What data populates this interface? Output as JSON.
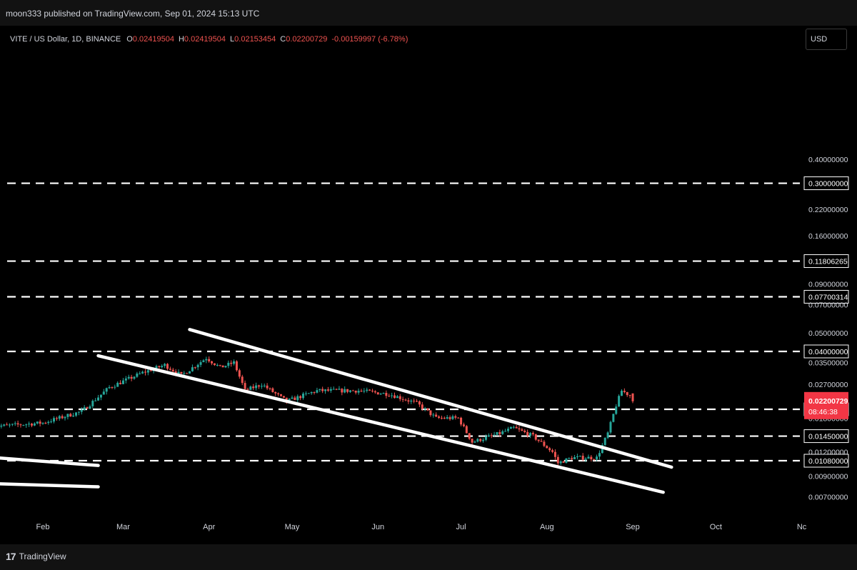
{
  "header": {
    "publisher": "moon333 published on TradingView.com, Sep 01, 2024 15:13 UTC"
  },
  "legend": {
    "symbol": "VITE / US Dollar, 1D, BINANCE",
    "o_label": "O",
    "o_value": "0.02419504",
    "h_label": "H",
    "h_value": "0.02419504",
    "l_label": "L",
    "l_value": "0.02153454",
    "c_label": "C",
    "c_value": "0.02200729",
    "change": "-0.00159997 (-6.78%)"
  },
  "currency_button": "USD",
  "footer": {
    "logo_mark": "17",
    "brand": "TradingView"
  },
  "colors": {
    "up": "#26a69a",
    "down": "#ef5350",
    "price_label": "#f23645",
    "line": "#ffffff",
    "background": "#000000",
    "axis_text": "#d1d4dc"
  },
  "chart_data": {
    "type": "candlestick",
    "scale": "log",
    "symbol": "VITE / US Dollar",
    "interval": "1D",
    "exchange": "BINANCE",
    "currency": "USD",
    "x_ticks": [
      "Feb",
      "Mar",
      "Apr",
      "May",
      "Jun",
      "Jul",
      "Aug",
      "Sep",
      "Oct",
      "Nc"
    ],
    "y_ticks": [
      "0.40000000",
      "0.22000000",
      "0.16000000",
      "0.09000000",
      "0.07000000",
      "0.05000000",
      "0.03500000",
      "0.02700000",
      "0.01800000",
      "0.01200000",
      "0.00900000",
      "0.00700000"
    ],
    "horizontal_levels": [
      "0.30000000",
      "0.11806265",
      "0.07700314",
      "0.04000000",
      "0.02000000",
      "0.01450000",
      "0.01080000"
    ],
    "last_price": {
      "value": "0.02200729",
      "countdown": "08:46:38"
    },
    "anchors": [
      {
        "date": "2024-01-18",
        "value": 0.0164
      },
      {
        "date": "2024-02-01",
        "value": 0.017
      },
      {
        "date": "2024-02-15",
        "value": 0.0195
      },
      {
        "date": "2024-02-25",
        "value": 0.026
      },
      {
        "date": "2024-03-08",
        "value": 0.031
      },
      {
        "date": "2024-03-16",
        "value": 0.034
      },
      {
        "date": "2024-03-22",
        "value": 0.03
      },
      {
        "date": "2024-03-31",
        "value": 0.037
      },
      {
        "date": "2024-04-05",
        "value": 0.033
      },
      {
        "date": "2024-04-10",
        "value": 0.035
      },
      {
        "date": "2024-04-14",
        "value": 0.025
      },
      {
        "date": "2024-04-20",
        "value": 0.027
      },
      {
        "date": "2024-04-29",
        "value": 0.022
      },
      {
        "date": "2024-05-10",
        "value": 0.025
      },
      {
        "date": "2024-05-25",
        "value": 0.025
      },
      {
        "date": "2024-06-05",
        "value": 0.024
      },
      {
        "date": "2024-06-15",
        "value": 0.0215
      },
      {
        "date": "2024-06-22",
        "value": 0.018
      },
      {
        "date": "2024-06-30",
        "value": 0.018
      },
      {
        "date": "2024-07-05",
        "value": 0.0135
      },
      {
        "date": "2024-07-15",
        "value": 0.015
      },
      {
        "date": "2024-07-20",
        "value": 0.016
      },
      {
        "date": "2024-07-27",
        "value": 0.0145
      },
      {
        "date": "2024-08-03",
        "value": 0.012
      },
      {
        "date": "2024-08-05",
        "value": 0.0105
      },
      {
        "date": "2024-08-10",
        "value": 0.0112
      },
      {
        "date": "2024-08-19",
        "value": 0.0112
      },
      {
        "date": "2024-08-23",
        "value": 0.015
      },
      {
        "date": "2024-08-26",
        "value": 0.021
      },
      {
        "date": "2024-08-28",
        "value": 0.025
      },
      {
        "date": "2024-08-31",
        "value": 0.0236
      },
      {
        "date": "2024-09-01",
        "value": 0.022
      }
    ],
    "trendlines": [
      {
        "name": "channel-upper",
        "from": {
          "date": "2024-03-25",
          "value": 0.052
        },
        "to": {
          "date": "2024-09-15",
          "value": 0.01
        }
      },
      {
        "name": "channel-lower",
        "from": {
          "date": "2024-02-21",
          "value": 0.038
        },
        "to": {
          "date": "2024-09-12",
          "value": 0.0074
        }
      },
      {
        "name": "old-line-1",
        "from": {
          "date": "2024-01-15",
          "value": 0.0112
        },
        "to": {
          "date": "2024-02-21",
          "value": 0.0102
        }
      },
      {
        "name": "old-line-2",
        "from": {
          "date": "2024-01-15",
          "value": 0.0082
        },
        "to": {
          "date": "2024-02-21",
          "value": 0.0079
        }
      }
    ]
  }
}
